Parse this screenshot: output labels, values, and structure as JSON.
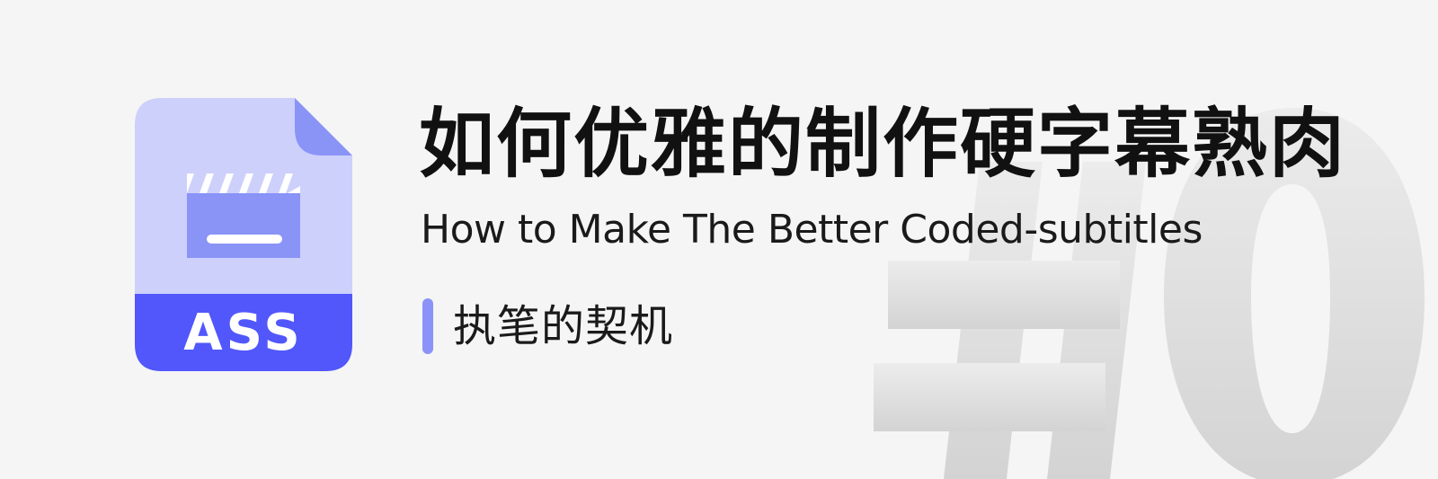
{
  "banner": {
    "background_color": "#f5f5f5",
    "watermark": "#0",
    "icon": {
      "name": "ass-file-icon",
      "badge_text": "ASS",
      "colors": {
        "page": "#cdd0fb",
        "fold": "#8a93f6",
        "clapper": "#8a93f6",
        "badge": "#5157fb"
      }
    },
    "title_zh": "如何优雅的制作硬字幕熟肉",
    "title_en": "How to Make The Better Coded-subtitles",
    "subtitle_zh": "执笔的契机",
    "accent_color": "#8b93f8"
  }
}
